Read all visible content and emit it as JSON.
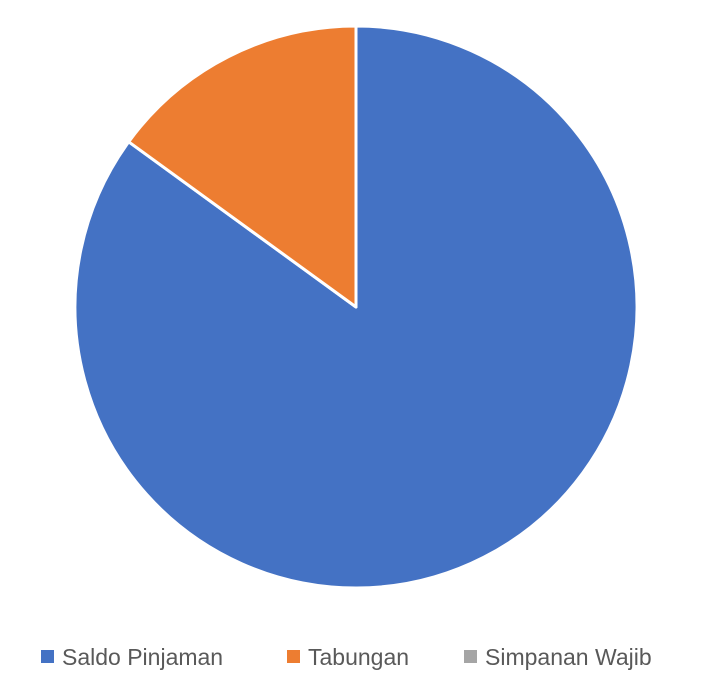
{
  "chart_data": {
    "type": "pie",
    "title": "",
    "categories": [
      "Saldo Pinjaman",
      "Tabungan",
      "Simpanan Wajib"
    ],
    "values": [
      85.0,
      15.0,
      0.0
    ],
    "colors": [
      "#4472C4",
      "#ED7D31",
      "#A5A5A5"
    ],
    "start_angle_deg": 0,
    "direction": "clockwise",
    "slice_separator_color": "#FFFFFF",
    "legend": {
      "position": "bottom",
      "entries": [
        "Saldo Pinjaman",
        "Tabungan",
        "Simpanan Wajib"
      ]
    }
  }
}
